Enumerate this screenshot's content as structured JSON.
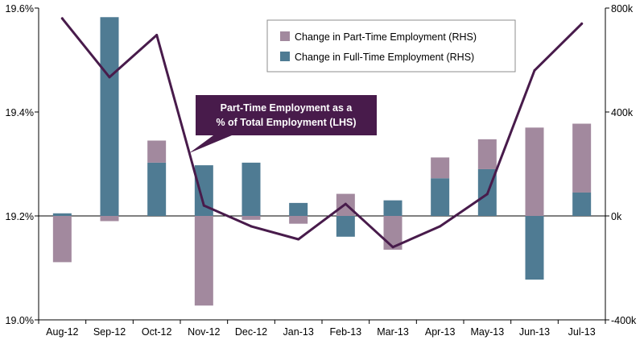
{
  "chart_data": {
    "type": "bar",
    "categories": [
      "Aug-12",
      "Sep-12",
      "Oct-12",
      "Nov-12",
      "Dec-12",
      "Jan-13",
      "Feb-13",
      "Mar-13",
      "Apr-13",
      "May-13",
      "Jun-13",
      "Jul-13"
    ],
    "series": [
      {
        "name": "Change in Part-Time Employment (RHS)",
        "type": "bar",
        "axis": "right",
        "values": [
          -178,
          -20,
          85,
          -345,
          -15,
          -30,
          85,
          -130,
          80,
          115,
          340,
          265
        ]
      },
      {
        "name": "Change in Full-Time Employment (RHS)",
        "type": "bar",
        "axis": "right",
        "values": [
          10,
          765,
          205,
          195,
          205,
          50,
          -80,
          60,
          145,
          180,
          -245,
          90
        ]
      },
      {
        "name": "Part-Time Employment as a % of Total Employment (LHS)",
        "type": "line",
        "axis": "left",
        "values": [
          19.58,
          19.467,
          19.548,
          19.22,
          19.18,
          19.155,
          19.223,
          19.14,
          19.18,
          19.242,
          19.48,
          19.57
        ]
      }
    ],
    "y_left": {
      "ylim": [
        19.0,
        19.6
      ],
      "ticks": [
        "19.0%",
        "19.2%",
        "19.4%",
        "19.6%"
      ]
    },
    "y_right": {
      "ylim": [
        -400,
        800
      ],
      "ticks": [
        "-400k",
        "0k",
        "400k",
        "800k"
      ]
    },
    "legend_position": "top-right",
    "grid": false,
    "callout": {
      "line1": "Part-Time Employment as a",
      "line2": "% of Total Employment (LHS)"
    }
  },
  "colors": {
    "part_time": "#a2899e",
    "full_time": "#4f7b93",
    "line": "#481b4b",
    "axis": "#000000"
  }
}
